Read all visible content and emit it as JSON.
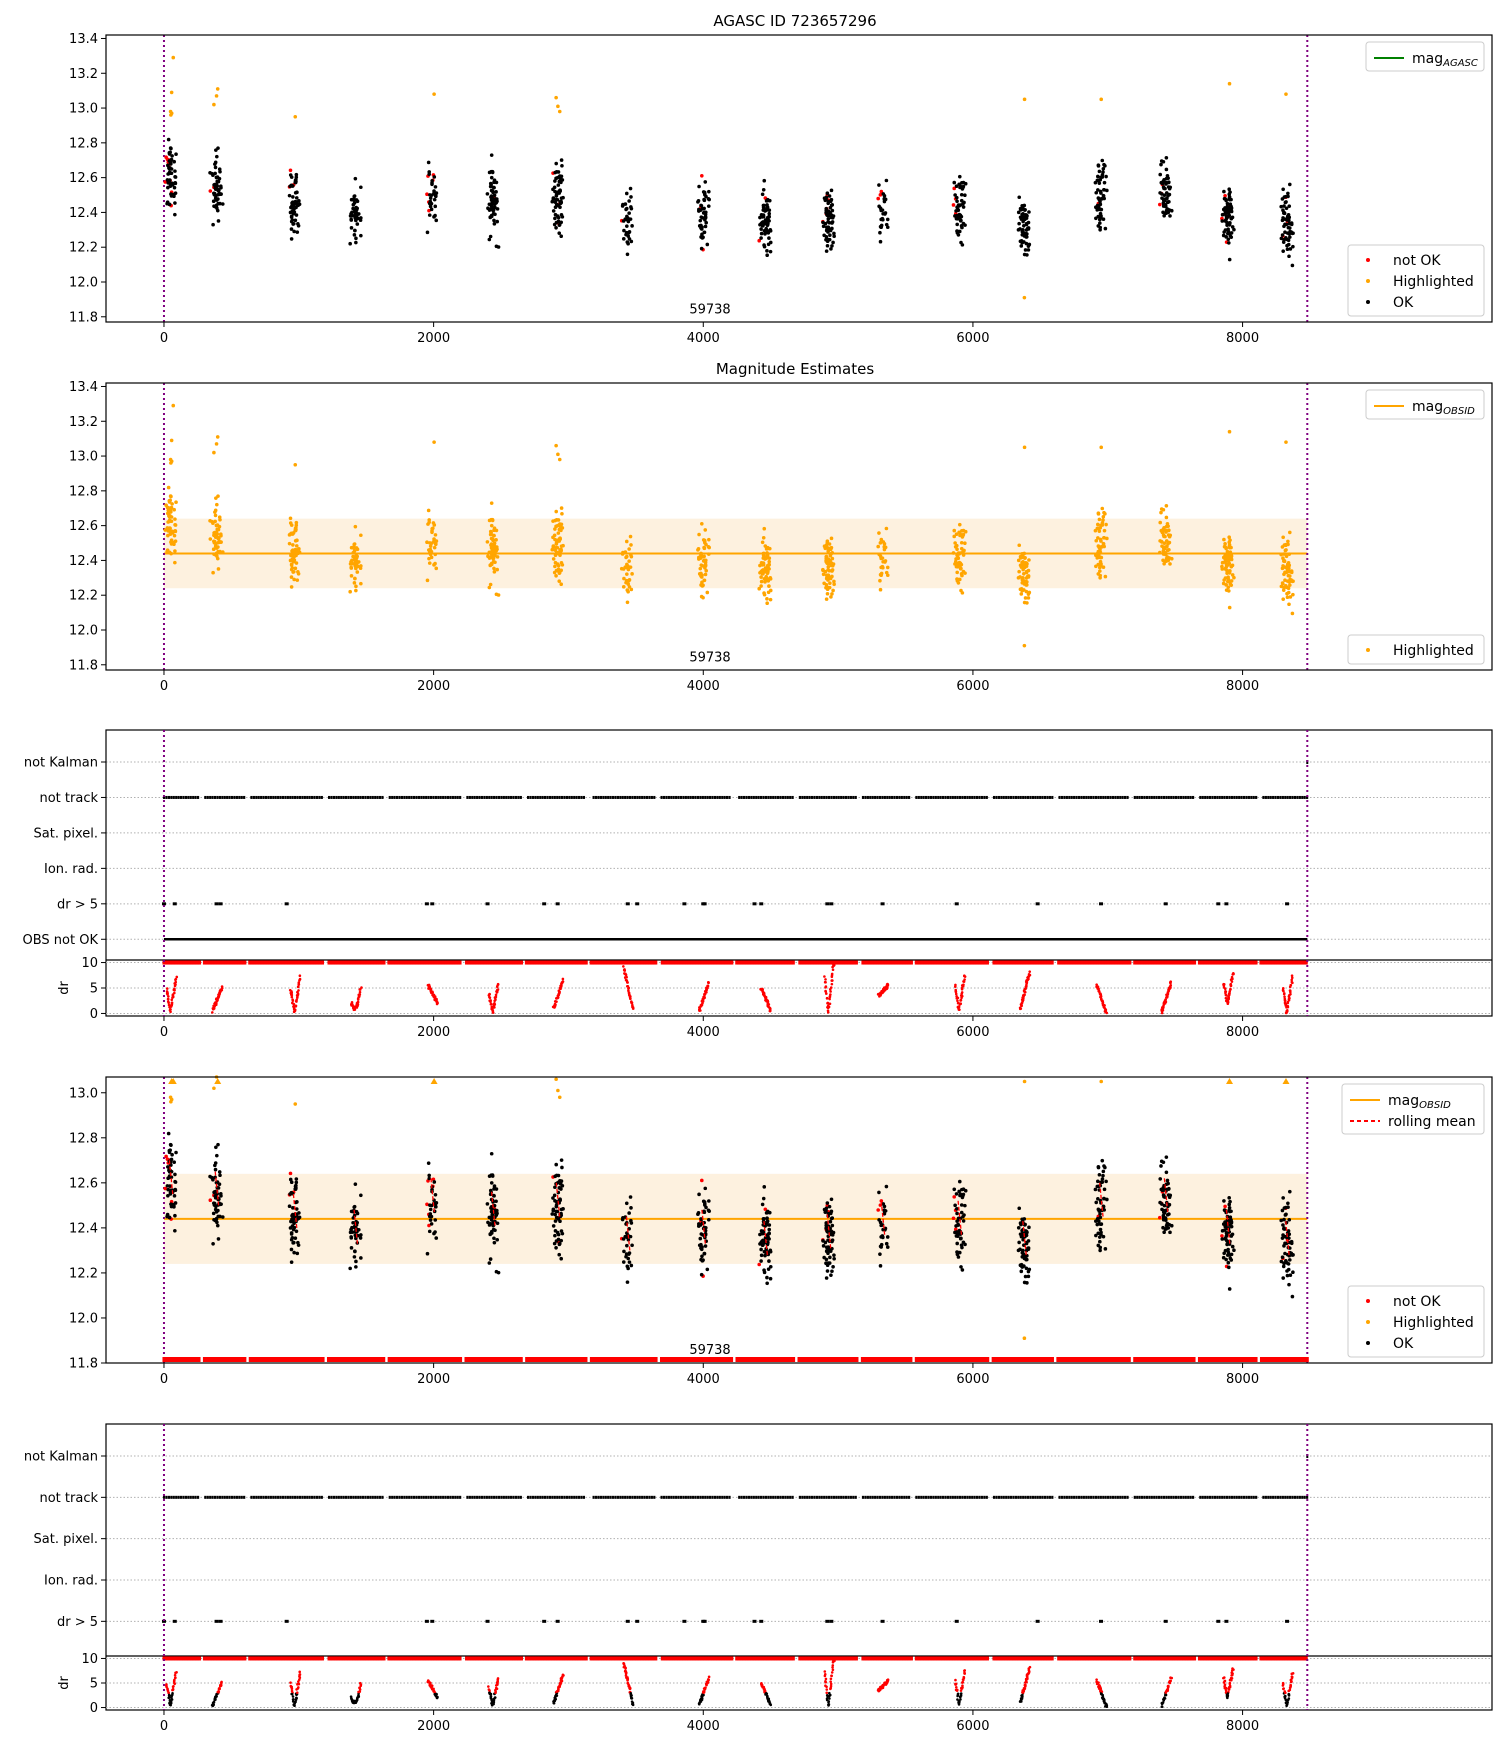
{
  "figure_title": "AGASC ID 723657296",
  "colors": {
    "ok": "#000000",
    "not_ok": "#ff0000",
    "highlighted": "#ffa500",
    "mag_agasc": "#008000",
    "mag_obsid": "#ffa500",
    "band": "#fdf1df",
    "obs_boundary": "#800080",
    "rolling_mean": "#ff0000",
    "grid": "#b0b0b0"
  },
  "chart_data": [
    {
      "id": "agasc",
      "type": "scatter",
      "title": "AGASC ID 723657296",
      "xlabel": "",
      "ylabel": "",
      "xlim": [
        -430,
        9850
      ],
      "ylim": [
        11.77,
        13.42
      ],
      "xticks": [
        0,
        2000,
        4000,
        6000,
        8000
      ],
      "yticks": [
        11.8,
        12.0,
        12.2,
        12.4,
        12.6,
        12.8,
        13.0,
        13.2,
        13.4
      ],
      "obs_boundaries": [
        0,
        8480
      ],
      "annotation": {
        "text": "59738",
        "x": 4050,
        "y": 11.82
      },
      "legend_lines": [
        {
          "label": "mag",
          "sub": "AGASC",
          "color": "#008000",
          "style": "solid"
        }
      ],
      "legend_points": [
        {
          "label": "not OK",
          "color": "#ff0000"
        },
        {
          "label": "Highlighted",
          "color": "#ffa500"
        },
        {
          "label": "OK",
          "color": "#000000"
        }
      ],
      "legend_lines_position": "top-right",
      "legend_points_position": "bottom-right"
    },
    {
      "id": "estimates",
      "type": "scatter",
      "title": "Magnitude Estimates",
      "xlim": [
        -430,
        9850
      ],
      "ylim": [
        11.77,
        13.42
      ],
      "xticks": [
        0,
        2000,
        4000,
        6000,
        8000
      ],
      "yticks": [
        11.8,
        12.0,
        12.2,
        12.4,
        12.6,
        12.8,
        13.0,
        13.2,
        13.4
      ],
      "mag_obsid": 12.44,
      "band": [
        12.24,
        12.64
      ],
      "obs_boundaries": [
        0,
        8480
      ],
      "annotation": {
        "text": "59738",
        "x": 4050,
        "y": 11.82
      },
      "legend_lines": [
        {
          "label": "mag",
          "sub": "OBSID",
          "color": "#ffa500",
          "style": "solid"
        }
      ],
      "legend_points": [
        {
          "label": "Highlighted",
          "color": "#ffa500"
        }
      ],
      "legend_lines_position": "top-right",
      "legend_points_position": "bottom-right"
    },
    {
      "id": "flags1",
      "type": "scatter",
      "categories": [
        "not Kalman",
        "not track",
        "Sat. pixel.",
        "Ion. rad.",
        "dr > 5",
        "OBS not OK"
      ],
      "xlim": [
        -430,
        9850
      ],
      "obs_boundaries": [
        0,
        8480
      ],
      "dr_ylim": [
        -0.5,
        10.5
      ],
      "dr_yticks": [
        0,
        5,
        10
      ],
      "dr_ylabel": "dr",
      "dr_colored_by_ok": false,
      "xticks": [
        0,
        2000,
        4000,
        6000,
        8000
      ]
    },
    {
      "id": "combined",
      "type": "scatter",
      "xlim": [
        -430,
        9850
      ],
      "ylim": [
        11.8,
        13.07
      ],
      "xticks": [
        0,
        2000,
        4000,
        6000,
        8000
      ],
      "yticks": [
        11.8,
        12.0,
        12.2,
        12.4,
        12.6,
        12.8,
        13.0
      ],
      "mag_obsid": 12.44,
      "band": [
        12.24,
        12.64
      ],
      "obs_boundaries": [
        0,
        8480
      ],
      "annotation": {
        "text": "59738",
        "x": 4050,
        "y": 11.84
      },
      "legend_lines": [
        {
          "label": "mag",
          "sub": "OBSID",
          "color": "#ffa500",
          "style": "solid"
        },
        {
          "label": "rolling mean",
          "sub": "",
          "color": "#ff0000",
          "style": "dashed"
        }
      ],
      "legend_points": [
        {
          "label": "not OK",
          "color": "#ff0000"
        },
        {
          "label": "Highlighted",
          "color": "#ffa500"
        },
        {
          "label": "OK",
          "color": "#000000"
        }
      ],
      "legend_lines_position": "top-right",
      "legend_points_position": "bottom-right"
    },
    {
      "id": "flags2",
      "type": "scatter",
      "categories": [
        "not Kalman",
        "not track",
        "Sat. pixel.",
        "Ion. rad.",
        "dr > 5"
      ],
      "xlim": [
        -430,
        9850
      ],
      "obs_boundaries": [
        0,
        8480
      ],
      "dr_ylim": [
        -0.5,
        10.5
      ],
      "dr_yticks": [
        0,
        5,
        10
      ],
      "dr_ylabel": "dr",
      "dr_colored_by_ok": true,
      "xticks": [
        0,
        2000,
        4000,
        6000,
        8000
      ]
    }
  ],
  "observations": [
    {
      "x": 50,
      "mag_center": 12.6,
      "spread": 0.33,
      "n": 60,
      "not_ok": 10,
      "high": [
        13.29,
        13.09,
        12.98,
        12.97,
        12.96
      ],
      "dr_shape": "V",
      "dr_low": 0.5,
      "dr_high": 6
    },
    {
      "x": 390,
      "mag_center": 12.55,
      "spread": 0.33,
      "n": 55,
      "not_ok": 2,
      "high": [
        13.07,
        13.11,
        13.02
      ],
      "dr_shape": "up",
      "dr_low": 0.5,
      "dr_high": 5
    },
    {
      "x": 970,
      "mag_center": 12.45,
      "spread": 0.32,
      "n": 60,
      "not_ok": 4,
      "high": [
        12.95
      ],
      "dr_shape": "V",
      "dr_low": 0.2,
      "dr_high": 6
    },
    {
      "x": 1420,
      "mag_center": 12.38,
      "spread": 0.3,
      "n": 45,
      "not_ok": 0,
      "high": [],
      "dr_shape": "U",
      "dr_low": 1,
      "dr_high": 4
    },
    {
      "x": 1990,
      "mag_center": 12.52,
      "spread": 0.28,
      "n": 35,
      "not_ok": 6,
      "high": [
        13.08
      ],
      "dr_shape": "down",
      "dr_low": 2,
      "dr_high": 5.5
    },
    {
      "x": 2440,
      "mag_center": 12.46,
      "spread": 0.35,
      "n": 65,
      "not_ok": 1,
      "high": [],
      "dr_shape": "V",
      "dr_low": 0.2,
      "dr_high": 5
    },
    {
      "x": 2920,
      "mag_center": 12.5,
      "spread": 0.38,
      "n": 65,
      "not_ok": 3,
      "high": [
        13.01,
        13.06,
        12.98
      ],
      "dr_shape": "up",
      "dr_low": 1,
      "dr_high": 6.5
    },
    {
      "x": 3440,
      "mag_center": 12.35,
      "spread": 0.3,
      "n": 35,
      "not_ok": 1,
      "high": [],
      "dr_shape": "down",
      "dr_low": 0.8,
      "dr_high": 9
    },
    {
      "x": 4000,
      "mag_center": 12.38,
      "spread": 0.33,
      "n": 50,
      "not_ok": 3,
      "high": [],
      "dr_shape": "up",
      "dr_low": 0.5,
      "dr_high": 6
    },
    {
      "x": 4460,
      "mag_center": 12.33,
      "spread": 0.3,
      "n": 75,
      "not_ok": 2,
      "high": [],
      "dr_shape": "down",
      "dr_low": 0.5,
      "dr_high": 5
    },
    {
      "x": 4930,
      "mag_center": 12.36,
      "spread": 0.32,
      "n": 70,
      "not_ok": 6,
      "high": [],
      "dr_shape": "V",
      "dr_low": 0.2,
      "dr_high": 9
    },
    {
      "x": 5330,
      "mag_center": 12.42,
      "spread": 0.28,
      "n": 30,
      "not_ok": 3,
      "high": [],
      "dr_shape": "up",
      "dr_low": 3.5,
      "dr_high": 5.5
    },
    {
      "x": 5900,
      "mag_center": 12.42,
      "spread": 0.32,
      "n": 55,
      "not_ok": 4,
      "high": [],
      "dr_shape": "V",
      "dr_low": 0.5,
      "dr_high": 6.5
    },
    {
      "x": 6380,
      "mag_center": 12.33,
      "spread": 0.3,
      "n": 65,
      "not_ok": 0,
      "high": [
        13.05,
        11.91
      ],
      "dr_shape": "up",
      "dr_low": 1,
      "dr_high": 8
    },
    {
      "x": 6950,
      "mag_center": 12.5,
      "spread": 0.33,
      "n": 55,
      "not_ok": 1,
      "high": [
        13.05
      ],
      "dr_shape": "down",
      "dr_low": 0.1,
      "dr_high": 5.5
    },
    {
      "x": 7430,
      "mag_center": 12.52,
      "spread": 0.3,
      "n": 60,
      "not_ok": 3,
      "high": [],
      "dr_shape": "up",
      "dr_low": 0.2,
      "dr_high": 6
    },
    {
      "x": 7890,
      "mag_center": 12.38,
      "spread": 0.35,
      "n": 70,
      "not_ok": 4,
      "high": [
        13.14
      ],
      "dr_shape": "V",
      "dr_low": 2,
      "dr_high": 7
    },
    {
      "x": 8330,
      "mag_center": 12.33,
      "spread": 0.33,
      "n": 60,
      "not_ok": 3,
      "high": [
        13.08
      ],
      "dr_shape": "V",
      "dr_low": 0.2,
      "dr_high": 6
    }
  ],
  "flag_gaps_dr5": [
    0,
    80,
    390,
    420,
    910,
    1950,
    1990,
    2400,
    2820,
    2920,
    3440,
    3510,
    3860,
    4000,
    4010,
    4380,
    4430,
    4920,
    4950,
    5330,
    5880,
    6480,
    6950,
    7430,
    7820,
    7880,
    8330
  ]
}
